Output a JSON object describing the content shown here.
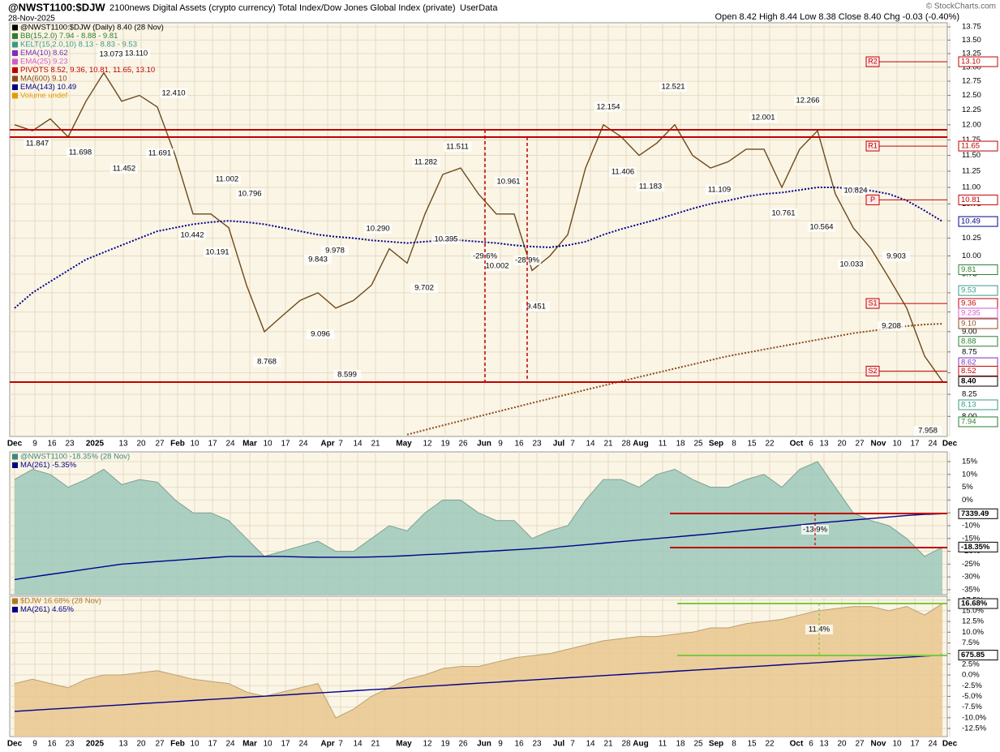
{
  "header": {
    "symbol": "@NWST1100:$DJW",
    "description": "2100news Digital Assets (crypto currency) Total Index/Dow Jones Global Index (private)",
    "source": "UserData",
    "date": "28-Nov-2025",
    "ohlc": "Open 8.42 High 8.44 Low 8.38 Close 8.40 Chg -0.03 (-0.40%)",
    "copyright": "© StockCharts.com"
  },
  "chart_data": [
    {
      "type": "line",
      "log_scale": true,
      "grid": true,
      "legend": [
        {
          "text": "@NWST1100:$DJW (Daily) 8.40 (28 Nov)",
          "color": "#000000"
        },
        {
          "text": "BB(15,2.0) 7.94 - 8.88 - 9.81",
          "color": "#2e7d32"
        },
        {
          "text": "KELT(15,2.0,10) 8.13 - 8.83 - 9.53",
          "color": "#3a9a86"
        },
        {
          "text": "EMA(10) 8.62",
          "color": "#7b2fbe"
        },
        {
          "text": "EMA(25) 9.23",
          "color": "#d45bc4"
        },
        {
          "text": "PIVOTS 8.52, 9.36, 10.81, 11.65, 13.10",
          "color": "#c00000"
        },
        {
          "text": "MA(600) 9.10",
          "color": "#8b4a1c"
        },
        {
          "text": "EMA(143) 10.49",
          "color": "#00008b"
        },
        {
          "text": "Volume undef",
          "color": "#e69a00"
        }
      ],
      "x_labels": [
        "Dec",
        "9",
        "16",
        "23",
        "2025",
        "13",
        "20",
        "27",
        "Feb",
        "10",
        "17",
        "24",
        "Mar",
        "10",
        "17",
        "24",
        "Apr",
        "7",
        "14",
        "21",
        "May",
        "12",
        "19",
        "26",
        "Jun",
        "9",
        "16",
        "23",
        "Jul",
        "7",
        "14",
        "21",
        "28",
        "Aug",
        "11",
        "18",
        "25",
        "Sep",
        "8",
        "15",
        "22",
        "Oct",
        "6",
        "13",
        "20",
        "27",
        "Nov",
        "10",
        "17",
        "24",
        "Dec"
      ],
      "ylim": [
        7.78,
        13.83
      ],
      "yticks": [
        {
          "value": 8,
          "label": "8.00"
        },
        {
          "value": 8.25,
          "label": "8.25"
        },
        {
          "value": 8.5,
          "label": "8.50"
        },
        {
          "value": 8.75,
          "label": "8.75"
        },
        {
          "value": 9,
          "label": "9.00"
        },
        {
          "value": 9.25,
          "label": "9.25"
        },
        {
          "value": 9.5,
          "label": "9.50"
        },
        {
          "value": 9.75,
          "label": "9.75"
        },
        {
          "value": 10,
          "label": "10.00"
        },
        {
          "value": 10.25,
          "label": "10.25"
        },
        {
          "value": 10.5,
          "label": "10.50"
        },
        {
          "value": 10.75,
          "label": "10.75"
        },
        {
          "value": 11,
          "label": "11.00"
        },
        {
          "value": 11.25,
          "label": "11.25"
        },
        {
          "value": 11.5,
          "label": "11.50"
        },
        {
          "value": 11.75,
          "label": "11.75"
        },
        {
          "value": 12,
          "label": "12.00"
        },
        {
          "value": 12.25,
          "label": "12.25"
        },
        {
          "value": 12.5,
          "label": "12.50"
        },
        {
          "value": 12.75,
          "label": "12.75"
        },
        {
          "value": 13,
          "label": "13.00"
        },
        {
          "value": 13.25,
          "label": "13.25"
        },
        {
          "value": 13.5,
          "label": "13.50"
        },
        {
          "value": 13.75,
          "label": "13.75"
        }
      ],
      "series": [
        {
          "name": "@NWST1100:$DJW",
          "color": "#6b4a1c",
          "values": [
            12.0,
            11.9,
            12.1,
            11.8,
            12.4,
            12.9,
            12.4,
            12.5,
            12.3,
            11.5,
            10.6,
            10.6,
            10.4,
            9.6,
            9.0,
            9.2,
            9.4,
            9.5,
            9.3,
            9.4,
            9.6,
            10.1,
            9.9,
            10.6,
            11.2,
            11.3,
            10.9,
            10.6,
            10.6,
            9.8,
            10.0,
            10.3,
            11.3,
            12.0,
            11.8,
            11.5,
            11.7,
            12.0,
            11.5,
            11.3,
            11.4,
            11.6,
            11.6,
            11.0,
            11.6,
            11.9,
            10.9,
            10.4,
            10.1,
            9.7,
            9.3,
            8.7,
            8.4
          ]
        },
        {
          "name": "EMA(143)",
          "color": "#00008b",
          "values": [
            9.3,
            9.5,
            9.65,
            9.8,
            9.95,
            10.05,
            10.15,
            10.25,
            10.35,
            10.4,
            10.45,
            10.48,
            10.5,
            10.48,
            10.45,
            10.4,
            10.35,
            10.3,
            10.27,
            10.25,
            10.22,
            10.2,
            10.18,
            10.2,
            10.22,
            10.22,
            10.2,
            10.18,
            10.15,
            10.13,
            10.12,
            10.15,
            10.2,
            10.3,
            10.38,
            10.45,
            10.52,
            10.6,
            10.68,
            10.75,
            10.8,
            10.86,
            10.9,
            10.92,
            10.96,
            11.0,
            11.0,
            10.98,
            10.95,
            10.9,
            10.8,
            10.65,
            10.49
          ]
        },
        {
          "name": "MA(600)",
          "color": "#8b4a1c",
          "values": [
            null,
            null,
            null,
            null,
            null,
            null,
            null,
            null,
            null,
            null,
            null,
            null,
            null,
            null,
            null,
            null,
            null,
            null,
            null,
            null,
            null,
            null,
            7.8,
            7.85,
            7.9,
            7.95,
            8.0,
            8.05,
            8.1,
            8.15,
            8.2,
            8.25,
            8.3,
            8.35,
            8.4,
            8.45,
            8.5,
            8.55,
            8.6,
            8.65,
            8.7,
            8.74,
            8.78,
            8.82,
            8.86,
            8.9,
            8.94,
            8.98,
            9.01,
            9.04,
            9.07,
            9.09,
            9.1
          ]
        }
      ],
      "annotations": [
        "11.847",
        "11.698",
        "13.073",
        "13.110",
        "12.410",
        "11.452",
        "11.691",
        "11.002",
        "10.796",
        "10.442",
        "10.191",
        "9.843",
        "9.978",
        "9.096",
        "8.768",
        "8.599",
        "10.290",
        "9.702",
        "11.282",
        "11.511",
        "10.395",
        "10.961",
        "10.002",
        "9.451",
        "-29.6%",
        "-28.9%",
        "12.154",
        "12.521",
        "11.406",
        "11.183",
        "12.001",
        "11.109",
        "12.266",
        "10.761",
        "10.824",
        "10.564",
        "10.033",
        "9.903",
        "9.208",
        "7.958"
      ],
      "pivots": [
        {
          "label": "R2",
          "value": 13.1
        },
        {
          "label": "R1",
          "value": 11.65
        },
        {
          "label": "P",
          "value": 10.81
        },
        {
          "label": "S1",
          "value": 9.36
        },
        {
          "label": "S2",
          "value": 8.52
        }
      ],
      "value_boxes": [
        {
          "value": 13.1,
          "label": "13.10",
          "color": "#c00000"
        },
        {
          "value": 11.65,
          "label": "11.65",
          "color": "#c00000"
        },
        {
          "value": 10.81,
          "label": "10.81",
          "color": "#c00000"
        },
        {
          "value": 10.49,
          "label": "10.49",
          "color": "#00008b"
        },
        {
          "value": 9.81,
          "label": "9.81",
          "color": "#2e7d32"
        },
        {
          "value": 9.53,
          "label": "9.53",
          "color": "#3a9a86"
        },
        {
          "value": 9.36,
          "label": "9.36",
          "color": "#c00000"
        },
        {
          "value": 9.235,
          "label": "9.235",
          "color": "#d45bc4"
        },
        {
          "value": 9.1,
          "label": "9.10",
          "color": "#8b4a1c"
        },
        {
          "value": 8.88,
          "label": "8.88",
          "color": "#2e7d32"
        },
        {
          "value": 8.62,
          "label": "8.62",
          "color": "#7b2fbe"
        },
        {
          "value": 8.52,
          "label": "8.52",
          "color": "#c00000"
        },
        {
          "value": 8.4,
          "label": "8.40",
          "color": "#000000"
        },
        {
          "value": 8.13,
          "label": "8.13",
          "color": "#3a9a86"
        },
        {
          "value": 7.94,
          "label": "7.94",
          "color": "#2e7d32"
        }
      ]
    },
    {
      "type": "area",
      "grid": true,
      "legend": [
        {
          "text": "@NWST1100 -18.35% (28 Nov)",
          "color": "#3a8a7a"
        },
        {
          "text": "MA(261) -5.35%",
          "color": "#00008b"
        }
      ],
      "ylim": [
        -36.9,
        18.8
      ],
      "yticks": [
        {
          "value": 15,
          "label": "15%"
        },
        {
          "value": 10,
          "label": "10%"
        },
        {
          "value": 5,
          "label": "5%"
        },
        {
          "value": 0,
          "label": "0%"
        },
        {
          "value": -5,
          "label": "-5%"
        },
        {
          "value": -10,
          "label": "-10%"
        },
        {
          "value": -15,
          "label": "-15%"
        },
        {
          "value": -20,
          "label": "-20%"
        },
        {
          "value": -25,
          "label": "-25%"
        },
        {
          "value": -30,
          "label": "-30%"
        },
        {
          "value": -35,
          "label": "-35%"
        }
      ],
      "series": [
        {
          "name": "@NWST1100",
          "color": "#9cc8ba",
          "values": [
            8,
            12,
            10,
            5,
            8,
            12,
            6,
            8,
            7,
            0,
            -5,
            -5,
            -8,
            -15,
            -22,
            -20,
            -18,
            -16,
            -20,
            -20,
            -15,
            -10,
            -12,
            -5,
            0,
            0,
            -5,
            -8,
            -8,
            -15,
            -12,
            -10,
            0,
            8,
            8,
            5,
            10,
            12,
            8,
            5,
            5,
            8,
            10,
            5,
            12,
            15,
            5,
            -5,
            -8,
            -10,
            -15,
            -22,
            -18.35
          ]
        },
        {
          "name": "MA(261)",
          "color": "#00008b",
          "values": [
            -31,
            -30,
            -29,
            -28,
            -27,
            -26,
            -25,
            -24.5,
            -24,
            -23.5,
            -23,
            -22.5,
            -22,
            -22,
            -22,
            -22,
            -22.2,
            -22.3,
            -22.3,
            -22.3,
            -22.2,
            -22,
            -21.7,
            -21.3,
            -21,
            -20.6,
            -20.2,
            -19.8,
            -19.4,
            -19,
            -18.5,
            -18,
            -17.4,
            -16.8,
            -16.2,
            -15.6,
            -15,
            -14.4,
            -13.8,
            -13.2,
            -12.5,
            -11.8,
            -11.1,
            -10.4,
            -9.7,
            -9,
            -8.4,
            -7.8,
            -7.2,
            -6.6,
            -6,
            -5.6,
            -5.35
          ]
        }
      ],
      "annotations": [
        "-13.9%"
      ],
      "value_boxes": [
        {
          "value": -5.35,
          "label": "7339.49",
          "color": "#000000"
        },
        {
          "value": -18.35,
          "label": "-18.35%",
          "color": "#000000"
        }
      ]
    },
    {
      "type": "area",
      "grid": true,
      "legend": [
        {
          "text": "$DJW 16.68% (28 Nov)",
          "color": "#b07a20"
        },
        {
          "text": "MA(261) 4.65%",
          "color": "#00008b"
        }
      ],
      "ylim": [
        -14.4,
        18.4
      ],
      "yticks": [
        {
          "value": 17.5,
          "label": "17.5%"
        },
        {
          "value": 15,
          "label": "15.0%"
        },
        {
          "value": 12.5,
          "label": "12.5%"
        },
        {
          "value": 10,
          "label": "10.0%"
        },
        {
          "value": 7.5,
          "label": "7.5%"
        },
        {
          "value": 5,
          "label": "5.0%"
        },
        {
          "value": 2.5,
          "label": "2.5%"
        },
        {
          "value": 0,
          "label": "0.0%"
        },
        {
          "value": -2.5,
          "label": "-2.5%"
        },
        {
          "value": -5,
          "label": "-5.0%"
        },
        {
          "value": -7.5,
          "label": "-7.5%"
        },
        {
          "value": -10,
          "label": "-10.0%"
        },
        {
          "value": -12.5,
          "label": "-12.5%"
        }
      ],
      "series": [
        {
          "name": "$DJW",
          "color": "#e9c78e",
          "values": [
            -2,
            -1,
            -2,
            -3,
            -1,
            0,
            0,
            0.5,
            1,
            0,
            -1,
            -1.5,
            -2,
            -4,
            -5,
            -4,
            -3,
            -2,
            -10,
            -8,
            -5,
            -3,
            -1,
            0,
            1.5,
            2,
            2,
            3,
            4,
            4.5,
            5,
            6,
            7,
            8,
            8.5,
            9,
            9,
            9.5,
            10,
            11,
            11,
            12,
            12.5,
            13,
            14,
            15,
            15.5,
            16,
            16,
            15,
            16,
            14,
            16.68
          ]
        },
        {
          "name": "MA(261)",
          "color": "#00008b",
          "values": [
            -8.5,
            -8.25,
            -7.99,
            -7.74,
            -7.49,
            -7.24,
            -6.98,
            -6.73,
            -6.48,
            -6.22,
            -5.97,
            -5.72,
            -5.47,
            -5.21,
            -4.96,
            -4.71,
            -4.45,
            -4.2,
            -3.95,
            -3.69,
            -3.44,
            -3.19,
            -2.94,
            -2.68,
            -2.43,
            -2.18,
            -1.92,
            -1.67,
            -1.42,
            -1.17,
            -0.91,
            -0.66,
            -0.41,
            -0.15,
            0.1,
            0.35,
            0.6,
            0.86,
            1.11,
            1.36,
            1.62,
            1.87,
            2.12,
            2.37,
            2.63,
            2.88,
            3.13,
            3.39,
            3.64,
            3.89,
            4.14,
            4.4,
            4.65
          ]
        }
      ],
      "annotations": [
        "11.4%"
      ],
      "value_boxes": [
        {
          "value": 16.68,
          "label": "16.68%",
          "color": "#000000"
        },
        {
          "value": 4.65,
          "label": "675.85",
          "color": "#000000"
        }
      ]
    }
  ]
}
